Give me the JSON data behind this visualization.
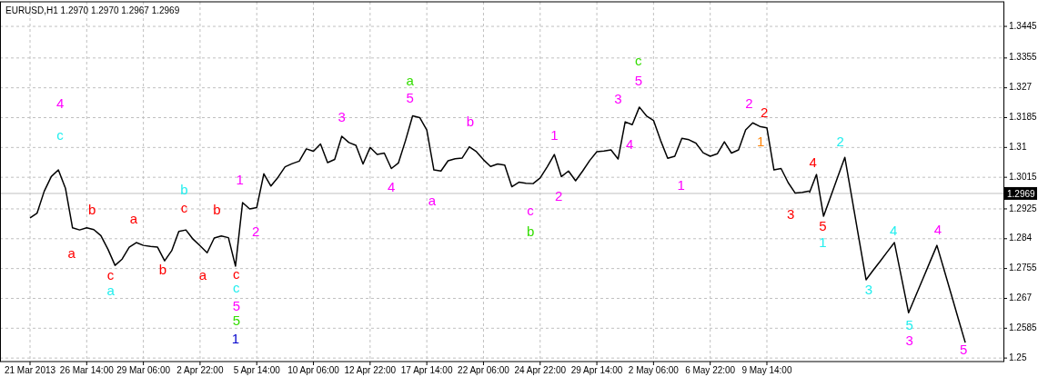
{
  "chart_data": {
    "type": "line",
    "title": "EURUSD,H1  1.2970 1.2970 1.2967 1.2969",
    "categories": [
      "21 Mar 2013",
      null,
      null,
      null,
      null,
      null,
      null,
      null,
      "26 Mar 14:00",
      null,
      null,
      null,
      null,
      null,
      null,
      null,
      "29 Mar 06:00",
      null,
      null,
      null,
      null,
      null,
      null,
      null,
      "2 Apr 22:00",
      null,
      null,
      null,
      null,
      null,
      null,
      null,
      "5 Apr 14:00",
      null,
      null,
      null,
      null,
      null,
      null,
      null,
      "10 Apr 06:00",
      null,
      null,
      null,
      null,
      null,
      null,
      null,
      "12 Apr 22:00",
      null,
      null,
      null,
      null,
      null,
      null,
      null,
      "17 Apr 14:00",
      null,
      null,
      null,
      null,
      null,
      null,
      null,
      "22 Apr 06:00",
      null,
      null,
      null,
      null,
      null,
      null,
      null,
      "24 Apr 22:00",
      null,
      null,
      null,
      null,
      null,
      null,
      null,
      "29 Apr 14:00",
      null,
      null,
      null,
      null,
      null,
      null,
      null,
      "2 May 06:00",
      null,
      null,
      null,
      null,
      null,
      null,
      null,
      "6 May 22:00",
      null,
      null,
      null,
      null,
      null,
      null,
      null,
      "9 May 14:00",
      null,
      null,
      null,
      null,
      null,
      null,
      null,
      null,
      null,
      null,
      null,
      null,
      null,
      null,
      null,
      null,
      null,
      null,
      null,
      null,
      null,
      null,
      null,
      null,
      null,
      null,
      null,
      null,
      null,
      null,
      null,
      null,
      null
    ],
    "ylim": [
      1.249,
      1.3515
    ],
    "yticks": [
      1.25,
      1.2585,
      1.267,
      1.2755,
      1.284,
      1.2925,
      1.3015,
      1.31,
      1.3185,
      1.327,
      1.3355,
      1.3445
    ],
    "grid": true,
    "series": [
      {
        "color": "#000000",
        "values": [
          1.2899,
          1.2913,
          1.2975,
          1.3017,
          1.3036,
          1.2984,
          1.2871,
          1.2865,
          1.2871,
          1.2866,
          1.2849,
          1.281,
          1.2764,
          1.2782,
          1.2816,
          1.2829,
          1.2821,
          1.2818,
          1.2816,
          1.2777,
          1.2806,
          1.2861,
          1.2865,
          1.2839,
          1.282,
          1.28,
          1.2842,
          1.2848,
          1.2843,
          1.2762,
          1.2943,
          1.2925,
          1.2929,
          1.3025,
          1.299,
          1.3015,
          1.3045,
          1.3054,
          1.3061,
          1.3096,
          1.3089,
          1.311,
          1.3057,
          1.3066,
          1.3132,
          1.3114,
          1.3106,
          1.3053,
          1.31,
          1.308,
          1.3084,
          1.304,
          1.3056,
          1.312,
          1.319,
          1.3185,
          1.315,
          1.3036,
          1.3033,
          1.3062,
          1.3068,
          1.307,
          1.3102,
          1.3088,
          1.3065,
          1.3046,
          1.3053,
          1.305,
          1.2988,
          1.3001,
          1.2998,
          1.2997,
          1.3013,
          1.3045,
          1.308,
          1.3017,
          1.3033,
          1.3005,
          1.3033,
          1.3063,
          1.3088,
          1.309,
          1.3093,
          1.3067,
          1.3173,
          1.3165,
          1.3215,
          1.319,
          1.3177,
          1.312,
          1.3069,
          1.3075,
          1.3126,
          1.3122,
          1.3112,
          1.3085,
          1.3075,
          1.3082,
          1.3116,
          1.3084,
          1.3093,
          1.315,
          1.317,
          1.316,
          1.3156,
          1.3036,
          1.304,
          1.3,
          1.297,
          1.2972,
          1.2976,
          null,
          null,
          null,
          null,
          null,
          null,
          null,
          null,
          null,
          null,
          null,
          null,
          null,
          null,
          null,
          null,
          null,
          null,
          null,
          null,
          null,
          null,
          null,
          null,
          null,
          null,
          null
        ]
      },
      {
        "color": "#000000",
        "values": [
          null,
          null,
          null,
          null,
          null,
          null,
          null,
          null,
          null,
          null,
          null,
          null,
          null,
          null,
          null,
          null,
          null,
          null,
          null,
          null,
          null,
          null,
          null,
          null,
          null,
          null,
          null,
          null,
          null,
          null,
          null,
          null,
          null,
          null,
          null,
          null,
          null,
          null,
          null,
          null,
          null,
          null,
          null,
          null,
          null,
          null,
          null,
          null,
          null,
          null,
          null,
          null,
          null,
          null,
          null,
          null,
          null,
          null,
          null,
          null,
          null,
          null,
          null,
          null,
          null,
          null,
          null,
          null,
          null,
          null,
          null,
          null,
          null,
          null,
          null,
          null,
          null,
          null,
          null,
          null,
          null,
          null,
          null,
          null,
          null,
          null,
          null,
          null,
          null,
          null,
          null,
          null,
          null,
          null,
          null,
          null,
          null,
          null,
          null,
          null,
          null,
          null,
          null,
          null,
          null,
          null,
          null,
          null,
          null,
          null,
          1.2971,
          1.3023,
          1.2904,
          1.296,
          1.3016,
          1.3072,
          1.2956,
          1.2839,
          1.2723,
          1.275,
          1.2776,
          1.2803,
          1.2829,
          1.2729,
          1.2629,
          1.2677,
          1.2725,
          1.2773,
          1.2821,
          1.2752,
          1.2683,
          1.2613,
          1.2544,
          null,
          null,
          null,
          null,
          null
        ]
      }
    ],
    "ref_lines": [
      {
        "axis": "y",
        "value": 1.2969,
        "label": "1.2969",
        "color": "#c0c0c0"
      }
    ],
    "annotations": [
      "4",
      "c",
      "b",
      "a",
      "a",
      "c",
      "a",
      "b",
      "c",
      "b",
      "b",
      "a",
      "c",
      "c",
      "5",
      "5",
      "1",
      "1",
      "2",
      "3",
      "4",
      "5",
      "a",
      "a",
      "b",
      "c",
      "b",
      "1",
      "2",
      "3",
      "4",
      "5",
      "c",
      "1",
      "2",
      "2",
      "1",
      "3",
      "4",
      "5",
      "1",
      "2",
      "3",
      "4",
      "5",
      "3",
      "4",
      "5"
    ]
  }
}
